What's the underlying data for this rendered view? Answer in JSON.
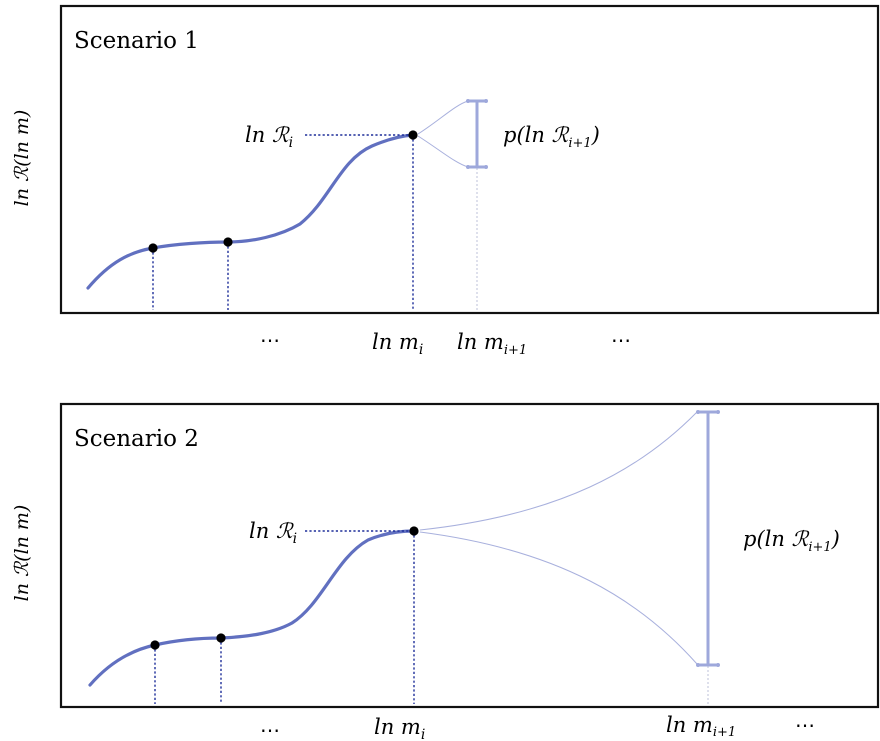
{
  "panels": [
    {
      "title": "Scenario 1",
      "ylabel": "ln ℛ(ln m)",
      "point_label": "ln ℛ",
      "point_label_sub": "i",
      "dist_label": "p(ln ℛ",
      "dist_label_sub": "i+1",
      "dist_label_close": ")",
      "x_ticks": {
        "left_dots": "⋯",
        "m_i": "ln m",
        "m_i_sub": "i",
        "m_next": "ln m",
        "m_next_sub": "i+1",
        "right_dots": "⋯"
      }
    },
    {
      "title": "Scenario 2",
      "ylabel": "ln ℛ(ln m)",
      "point_label": "ln ℛ",
      "point_label_sub": "i",
      "dist_label": "p(ln ℛ",
      "dist_label_sub": "i+1",
      "dist_label_close": ")",
      "x_ticks": {
        "left_dots": "⋯",
        "m_i": "ln m",
        "m_i_sub": "i",
        "m_next": "ln m",
        "m_next_sub": "i+1",
        "right_dots": "⋯"
      }
    }
  ],
  "colors": {
    "curve": "#6170c0",
    "dashed_drop": "#1e2f9a",
    "distribution": "#9ea8db",
    "frame": "#111111"
  }
}
